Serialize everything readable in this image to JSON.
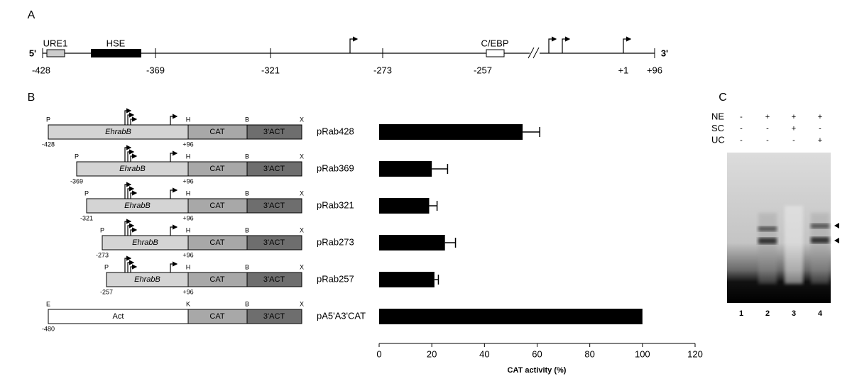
{
  "panel_a": {
    "label": "A",
    "five_prime": "5'",
    "three_prime": "3'",
    "elements": [
      "URE1",
      "HSE",
      "C/EBP"
    ],
    "positions": [
      "-428",
      "-369",
      "-321",
      "-273",
      "-257",
      "+1",
      "+96"
    ]
  },
  "panel_b": {
    "label": "B",
    "constructs": [
      {
        "sites": [
          "P",
          "H",
          "B",
          "X"
        ],
        "start": "-428",
        "end": "+96",
        "segments": [
          "EhrabB",
          "CAT",
          "3'ACT"
        ]
      },
      {
        "sites": [
          "P",
          "H",
          "B",
          "X"
        ],
        "start": "-369",
        "end": "+96",
        "segments": [
          "EhrabB",
          "CAT",
          "3'ACT"
        ]
      },
      {
        "sites": [
          "P",
          "H",
          "B",
          "X"
        ],
        "start": "-321",
        "end": "+96",
        "segments": [
          "EhrabB",
          "CAT",
          "3'ACT"
        ]
      },
      {
        "sites": [
          "P",
          "H",
          "B",
          "X"
        ],
        "start": "-273",
        "end": "+96",
        "segments": [
          "EhrabB",
          "CAT",
          "3'ACT"
        ]
      },
      {
        "sites": [
          "P",
          "H",
          "B",
          "X"
        ],
        "start": "-257",
        "end": "+96",
        "segments": [
          "EhrabB",
          "CAT",
          "3'ACT"
        ]
      },
      {
        "sites": [
          "E",
          "K",
          "B",
          "X"
        ],
        "start": "-480",
        "segments": [
          "Act",
          "CAT",
          "3'ACT"
        ]
      }
    ]
  },
  "chart_data": {
    "type": "bar",
    "orientation": "horizontal",
    "categories": [
      "pRab428",
      "pRab369",
      "pRab321",
      "pRab273",
      "pRab257",
      "pA5'A3'CAT"
    ],
    "values": [
      54.5,
      20,
      19,
      25,
      21,
      100
    ],
    "errors": [
      6.5,
      6,
      3,
      4,
      1.5,
      null
    ],
    "color": "#000000",
    "xlim": [
      0,
      120
    ],
    "xticks": [
      0,
      20,
      40,
      60,
      80,
      100,
      120
    ],
    "x_label": "CAT activity (%)"
  },
  "panel_c": {
    "label": "C",
    "rows": [
      {
        "name": "NE",
        "values": [
          "-",
          "+",
          "+",
          "+"
        ]
      },
      {
        "name": "SC",
        "values": [
          "-",
          "-",
          "+",
          "-"
        ]
      },
      {
        "name": "UC",
        "values": [
          "-",
          "-",
          "-",
          "+"
        ]
      }
    ],
    "lanes": [
      "1",
      "2",
      "3",
      "4"
    ]
  }
}
